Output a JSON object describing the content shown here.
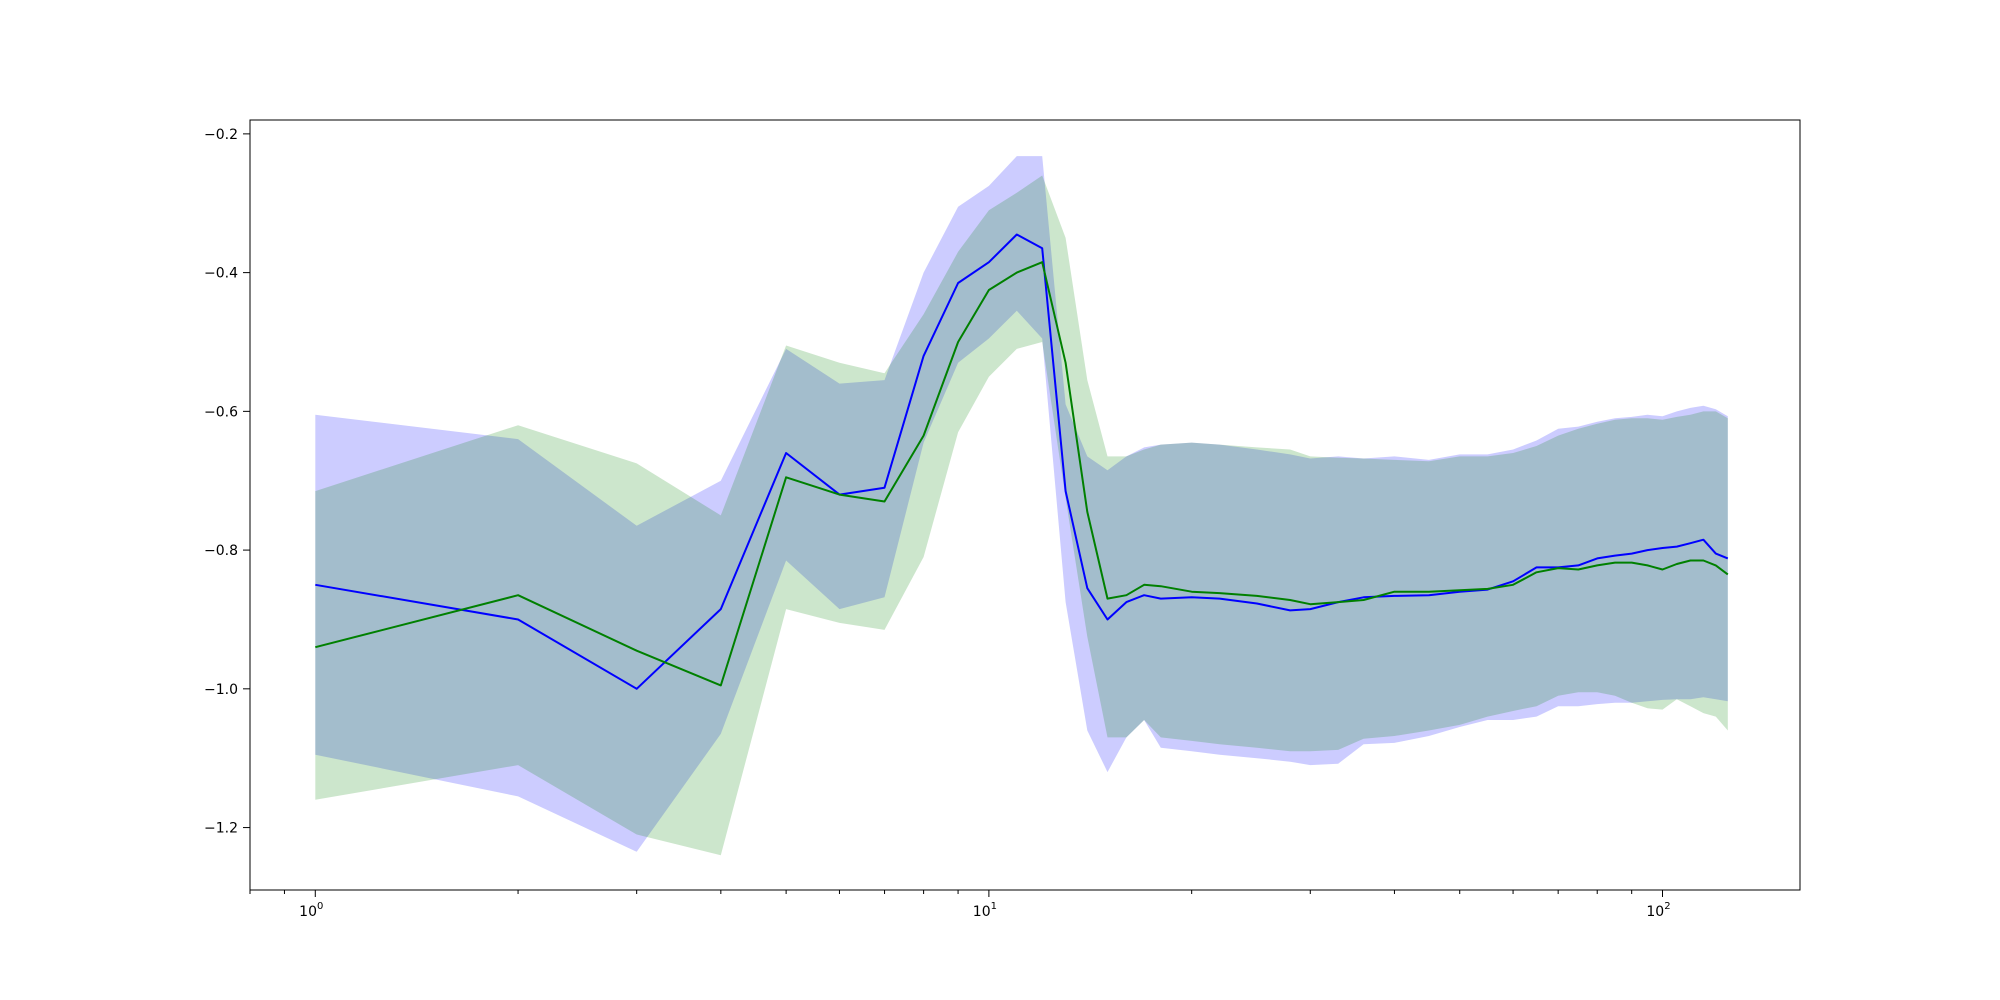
{
  "chart_data": {
    "type": "line",
    "title": "",
    "xlabel": "",
    "ylabel": "",
    "x_scale": "log",
    "xlim": [
      0.8,
      160
    ],
    "ylim": [
      -1.29,
      -0.18
    ],
    "grid": false,
    "legend": "none",
    "x_ticks": [
      {
        "value": 1,
        "base": "10",
        "exp": "0"
      },
      {
        "value": 10,
        "base": "10",
        "exp": "1"
      },
      {
        "value": 100,
        "base": "10",
        "exp": "2"
      }
    ],
    "y_ticks": [
      {
        "value": -0.2,
        "label": "−0.2"
      },
      {
        "value": -0.4,
        "label": "−0.4"
      },
      {
        "value": -0.6,
        "label": "−0.6"
      },
      {
        "value": -0.8,
        "label": "−0.8"
      },
      {
        "value": -1.0,
        "label": "−1.0"
      },
      {
        "value": -1.2,
        "label": "−1.2"
      }
    ],
    "x": [
      1,
      2,
      3,
      4,
      5,
      6,
      7,
      8,
      9,
      10,
      11,
      12,
      13,
      14,
      15,
      16,
      17,
      18,
      20,
      22,
      25,
      28,
      30,
      33,
      36,
      40,
      45,
      50,
      55,
      60,
      65,
      70,
      75,
      80,
      85,
      90,
      95,
      100,
      105,
      110,
      115,
      120,
      125
    ],
    "series": [
      {
        "color": "#0000ff",
        "band_color": "#0000ff",
        "band_opacity": 0.2,
        "values": [
          -0.85,
          -0.9,
          -1.0,
          -0.885,
          -0.66,
          -0.72,
          -0.71,
          -0.52,
          -0.415,
          -0.385,
          -0.345,
          -0.365,
          -0.715,
          -0.855,
          -0.9,
          -0.875,
          -0.865,
          -0.87,
          -0.868,
          -0.87,
          -0.877,
          -0.887,
          -0.885,
          -0.875,
          -0.868,
          -0.866,
          -0.865,
          -0.86,
          -0.857,
          -0.845,
          -0.825,
          -0.825,
          -0.822,
          -0.812,
          -0.808,
          -0.805,
          -0.8,
          -0.797,
          -0.795,
          -0.79,
          -0.785,
          -0.805,
          -0.812
        ],
        "upper": [
          -0.605,
          -0.64,
          -0.765,
          -0.7,
          -0.51,
          -0.56,
          -0.555,
          -0.4,
          -0.305,
          -0.275,
          -0.232,
          -0.232,
          -0.59,
          -0.665,
          -0.685,
          -0.665,
          -0.652,
          -0.648,
          -0.645,
          -0.648,
          -0.655,
          -0.662,
          -0.668,
          -0.665,
          -0.668,
          -0.665,
          -0.67,
          -0.662,
          -0.662,
          -0.655,
          -0.642,
          -0.625,
          -0.622,
          -0.615,
          -0.61,
          -0.608,
          -0.605,
          -0.607,
          -0.6,
          -0.595,
          -0.592,
          -0.597,
          -0.607
        ],
        "lower": [
          -1.095,
          -1.155,
          -1.235,
          -1.065,
          -0.815,
          -0.885,
          -0.868,
          -0.645,
          -0.53,
          -0.495,
          -0.455,
          -0.495,
          -0.875,
          -1.06,
          -1.12,
          -1.07,
          -1.045,
          -1.085,
          -1.09,
          -1.095,
          -1.1,
          -1.105,
          -1.11,
          -1.108,
          -1.08,
          -1.078,
          -1.068,
          -1.055,
          -1.045,
          -1.045,
          -1.04,
          -1.025,
          -1.025,
          -1.022,
          -1.02,
          -1.02,
          -1.018,
          -1.016,
          -1.015,
          -1.015,
          -1.012,
          -1.015,
          -1.018
        ]
      },
      {
        "color": "#008000",
        "band_color": "#008000",
        "band_opacity": 0.2,
        "values": [
          -0.94,
          -0.865,
          -0.945,
          -0.995,
          -0.695,
          -0.72,
          -0.73,
          -0.635,
          -0.5,
          -0.425,
          -0.4,
          -0.385,
          -0.53,
          -0.745,
          -0.87,
          -0.865,
          -0.85,
          -0.852,
          -0.86,
          -0.862,
          -0.866,
          -0.872,
          -0.878,
          -0.875,
          -0.872,
          -0.86,
          -0.86,
          -0.858,
          -0.856,
          -0.85,
          -0.832,
          -0.826,
          -0.828,
          -0.822,
          -0.818,
          -0.818,
          -0.822,
          -0.828,
          -0.82,
          -0.815,
          -0.815,
          -0.822,
          -0.835
        ],
        "upper": [
          -0.715,
          -0.62,
          -0.675,
          -0.75,
          -0.505,
          -0.53,
          -0.545,
          -0.46,
          -0.37,
          -0.31,
          -0.285,
          -0.26,
          -0.35,
          -0.555,
          -0.665,
          -0.665,
          -0.655,
          -0.648,
          -0.645,
          -0.648,
          -0.652,
          -0.655,
          -0.665,
          -0.667,
          -0.668,
          -0.67,
          -0.672,
          -0.665,
          -0.665,
          -0.66,
          -0.65,
          -0.635,
          -0.625,
          -0.618,
          -0.612,
          -0.61,
          -0.61,
          -0.612,
          -0.608,
          -0.605,
          -0.6,
          -0.6,
          -0.61
        ],
        "lower": [
          -1.16,
          -1.11,
          -1.21,
          -1.24,
          -0.885,
          -0.905,
          -0.915,
          -0.81,
          -0.63,
          -0.55,
          -0.51,
          -0.5,
          -0.725,
          -0.925,
          -1.07,
          -1.07,
          -1.045,
          -1.07,
          -1.075,
          -1.08,
          -1.085,
          -1.09,
          -1.09,
          -1.088,
          -1.072,
          -1.068,
          -1.06,
          -1.052,
          -1.04,
          -1.032,
          -1.025,
          -1.01,
          -1.005,
          -1.005,
          -1.01,
          -1.02,
          -1.028,
          -1.03,
          -1.015,
          -1.025,
          -1.035,
          -1.04,
          -1.06
        ]
      }
    ]
  }
}
